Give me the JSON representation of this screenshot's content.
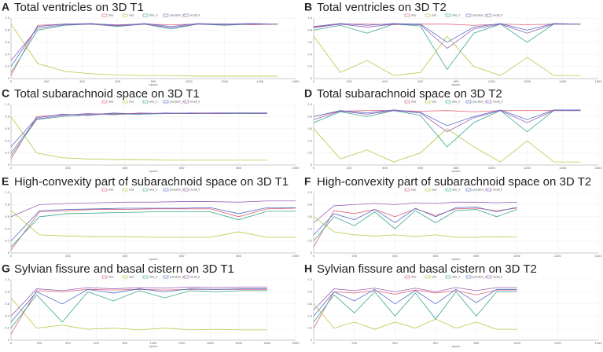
{
  "chart_data": [
    {
      "type": "line",
      "panel": "A",
      "title": "Total ventricles on 3D T1",
      "xlabel": "epoch",
      "x": [
        0,
        150,
        300,
        450,
        600,
        750,
        900,
        1050,
        1200,
        1350,
        1500
      ],
      "xlim": [
        0,
        1600
      ],
      "xticks": [
        0,
        200,
        400,
        600,
        800,
        1000,
        1200,
        1400,
        1600
      ],
      "ylim": [
        0,
        1
      ],
      "yticks": [
        0,
        0.2,
        0.4,
        0.6,
        0.8,
        {
          "value": 1,
          "label": "1.0"
        }
      ],
      "series": [
        {
          "name": "dice",
          "color": "#e06377",
          "values": [
            0.05,
            0.88,
            0.9,
            0.9,
            0.89,
            0.9,
            0.89,
            0.9,
            0.9,
            0.89,
            0.9
          ]
        },
        {
          "name": "loss",
          "color": "#b5c944",
          "values": [
            0.9,
            0.25,
            0.12,
            0.08,
            0.06,
            0.05,
            0.05,
            0.04,
            0.04,
            0.04,
            0.04
          ]
        },
        {
          "name": "dice_0",
          "color": "#3aa88f",
          "values": [
            0.1,
            0.8,
            0.88,
            0.9,
            0.86,
            0.9,
            0.82,
            0.9,
            0.88,
            0.9,
            0.9
          ]
        },
        {
          "name": "precision_0",
          "color": "#5470c6",
          "values": [
            0.2,
            0.86,
            0.9,
            0.91,
            0.88,
            0.91,
            0.86,
            0.91,
            0.9,
            0.91,
            0.9
          ]
        },
        {
          "name": "recall_0",
          "color": "#9a60b4",
          "values": [
            0.3,
            0.83,
            0.89,
            0.9,
            0.87,
            0.9,
            0.84,
            0.9,
            0.89,
            0.9,
            0.9
          ]
        }
      ]
    },
    {
      "type": "line",
      "panel": "B",
      "title": "Total ventricles on 3D T2",
      "xlabel": "epoch",
      "x": [
        0,
        150,
        300,
        450,
        600,
        750,
        900,
        1050,
        1200,
        1350,
        1500
      ],
      "xlim": [
        0,
        1600
      ],
      "xticks": [
        0,
        200,
        400,
        600,
        800,
        1000,
        1200,
        1400,
        1600
      ],
      "ylim": [
        0,
        1
      ],
      "yticks": [
        0,
        0.2,
        0.4,
        0.6,
        0.8,
        {
          "value": 1,
          "label": "1.0"
        }
      ],
      "series": [
        {
          "name": "dice",
          "color": "#e06377",
          "values": [
            0.85,
            0.9,
            0.9,
            0.89,
            0.9,
            0.9,
            0.88,
            0.9,
            0.89,
            0.9,
            0.9
          ]
        },
        {
          "name": "loss",
          "color": "#b5c944",
          "values": [
            0.7,
            0.1,
            0.3,
            0.05,
            0.1,
            0.7,
            0.2,
            0.05,
            0.35,
            0.05,
            0.05
          ]
        },
        {
          "name": "dice_0",
          "color": "#3aa88f",
          "values": [
            0.8,
            0.88,
            0.75,
            0.9,
            0.87,
            0.15,
            0.75,
            0.9,
            0.6,
            0.9,
            0.9
          ]
        },
        {
          "name": "precision_0",
          "color": "#5470c6",
          "values": [
            0.86,
            0.91,
            0.88,
            0.91,
            0.9,
            0.6,
            0.85,
            0.91,
            0.8,
            0.91,
            0.9
          ]
        },
        {
          "name": "recall_0",
          "color": "#9a60b4",
          "values": [
            0.84,
            0.9,
            0.85,
            0.9,
            0.89,
            0.5,
            0.82,
            0.9,
            0.75,
            0.9,
            0.9
          ]
        }
      ]
    },
    {
      "type": "line",
      "panel": "C",
      "title": "Total subarachnoid space on 3D T1",
      "xlabel": "epoch",
      "x": [
        0,
        90,
        180,
        270,
        360,
        450,
        540,
        630,
        720,
        810,
        900
      ],
      "xlim": [
        0,
        1000
      ],
      "xticks": [
        0,
        200,
        400,
        600,
        800,
        1000
      ],
      "ylim": [
        0,
        1
      ],
      "yticks": [
        0,
        0.2,
        0.4,
        0.6,
        0.8,
        {
          "value": 1,
          "label": "1.0"
        }
      ],
      "series": [
        {
          "name": "dice",
          "color": "#e06377",
          "values": [
            0.1,
            0.8,
            0.83,
            0.84,
            0.85,
            0.85,
            0.85,
            0.86,
            0.86,
            0.86,
            0.86
          ]
        },
        {
          "name": "loss",
          "color": "#b5c944",
          "values": [
            0.8,
            0.2,
            0.12,
            0.1,
            0.09,
            0.09,
            0.08,
            0.08,
            0.08,
            0.08,
            0.08
          ]
        },
        {
          "name": "dice_0",
          "color": "#3aa88f",
          "values": [
            0.15,
            0.75,
            0.8,
            0.83,
            0.84,
            0.84,
            0.85,
            0.85,
            0.85,
            0.85,
            0.85
          ]
        },
        {
          "name": "precision_0",
          "color": "#5470c6",
          "values": [
            0.3,
            0.78,
            0.84,
            0.82,
            0.86,
            0.84,
            0.86,
            0.85,
            0.86,
            0.86,
            0.86
          ]
        },
        {
          "name": "recall_0",
          "color": "#9a60b4",
          "values": [
            0.2,
            0.76,
            0.82,
            0.85,
            0.83,
            0.86,
            0.85,
            0.86,
            0.85,
            0.86,
            0.85
          ]
        }
      ]
    },
    {
      "type": "line",
      "panel": "D",
      "title": "Total subarachnoid space on 3D T2",
      "xlabel": "epoch",
      "x": [
        0,
        150,
        300,
        450,
        600,
        750,
        900,
        1050,
        1200,
        1350,
        1500
      ],
      "xlim": [
        0,
        1600
      ],
      "xticks": [
        0,
        200,
        400,
        600,
        800,
        1000,
        1200,
        1400,
        1600
      ],
      "ylim": [
        0,
        1
      ],
      "yticks": [
        0,
        0.2,
        0.4,
        0.6,
        0.8,
        {
          "value": 1,
          "label": "1.0"
        }
      ],
      "series": [
        {
          "name": "dice",
          "color": "#e06377",
          "values": [
            0.8,
            0.89,
            0.9,
            0.9,
            0.89,
            0.9,
            0.88,
            0.9,
            0.9,
            0.9,
            0.9
          ]
        },
        {
          "name": "loss",
          "color": "#b5c944",
          "values": [
            0.6,
            0.1,
            0.25,
            0.05,
            0.2,
            0.6,
            0.3,
            0.05,
            0.4,
            0.05,
            0.05
          ]
        },
        {
          "name": "dice_0",
          "color": "#3aa88f",
          "values": [
            0.7,
            0.88,
            0.8,
            0.9,
            0.82,
            0.3,
            0.7,
            0.9,
            0.55,
            0.9,
            0.9
          ]
        },
        {
          "name": "precision_0",
          "color": "#5470c6",
          "values": [
            0.8,
            0.9,
            0.86,
            0.91,
            0.87,
            0.65,
            0.8,
            0.91,
            0.75,
            0.91,
            0.91
          ]
        },
        {
          "name": "recall_0",
          "color": "#9a60b4",
          "values": [
            0.75,
            0.89,
            0.84,
            0.9,
            0.86,
            0.55,
            0.78,
            0.9,
            0.7,
            0.9,
            0.9
          ]
        }
      ]
    },
    {
      "type": "line",
      "panel": "E",
      "title": "High-convexity part of subarachnoid space on 3D T1",
      "xlabel": "epoch",
      "x": [
        0,
        100,
        200,
        300,
        400,
        500,
        600,
        700,
        800,
        900,
        1000
      ],
      "xlim": [
        0,
        1000
      ],
      "xticks": [
        0,
        200,
        400,
        600,
        800,
        1000
      ],
      "ylim": [
        0,
        1
      ],
      "yticks": [
        0,
        0.2,
        0.4,
        0.6,
        0.8,
        {
          "value": 1,
          "label": "1.0"
        }
      ],
      "series": [
        {
          "name": "dice",
          "color": "#e06377",
          "values": [
            0.05,
            0.68,
            0.7,
            0.72,
            0.72,
            0.73,
            0.73,
            0.73,
            0.6,
            0.73,
            0.74
          ]
        },
        {
          "name": "loss",
          "color": "#b5c944",
          "values": [
            0.7,
            0.3,
            0.28,
            0.27,
            0.27,
            0.26,
            0.26,
            0.26,
            0.35,
            0.26,
            0.26
          ]
        },
        {
          "name": "dice_0",
          "color": "#3aa88f",
          "values": [
            0.1,
            0.6,
            0.65,
            0.66,
            0.67,
            0.68,
            0.68,
            0.68,
            0.55,
            0.69,
            0.69
          ]
        },
        {
          "name": "precision_0",
          "color": "#5470c6",
          "values": [
            0.2,
            0.7,
            0.72,
            0.73,
            0.74,
            0.74,
            0.74,
            0.75,
            0.65,
            0.75,
            0.75
          ]
        },
        {
          "name": "recall_0",
          "color": "#9a60b4",
          "values": [
            0.6,
            0.8,
            0.82,
            0.83,
            0.84,
            0.84,
            0.85,
            0.85,
            0.84,
            0.86,
            0.86
          ]
        }
      ]
    },
    {
      "type": "line",
      "panel": "F",
      "title": "High-convexity part of subarachnoid space on 3D T2",
      "xlabel": "epoch",
      "x": [
        0,
        100,
        200,
        300,
        400,
        500,
        600,
        700,
        800,
        900,
        1000
      ],
      "xlim": [
        0,
        1400
      ],
      "xticks": [
        0,
        200,
        400,
        600,
        800,
        1000,
        1200,
        1400
      ],
      "ylim": [
        0,
        1
      ],
      "yticks": [
        0,
        0.2,
        0.4,
        0.6,
        0.8,
        {
          "value": 1,
          "label": "1.0"
        }
      ],
      "series": [
        {
          "name": "dice",
          "color": "#e06377",
          "values": [
            0.1,
            0.7,
            0.65,
            0.72,
            0.6,
            0.73,
            0.62,
            0.73,
            0.74,
            0.7,
            0.74
          ]
        },
        {
          "name": "loss",
          "color": "#b5c944",
          "values": [
            0.6,
            0.35,
            0.3,
            0.28,
            0.3,
            0.27,
            0.3,
            0.26,
            0.26,
            0.27,
            0.26
          ]
        },
        {
          "name": "dice_0",
          "color": "#3aa88f",
          "values": [
            0.2,
            0.6,
            0.45,
            0.68,
            0.4,
            0.7,
            0.5,
            0.7,
            0.72,
            0.6,
            0.72
          ]
        },
        {
          "name": "precision_0",
          "color": "#5470c6",
          "values": [
            0.3,
            0.65,
            0.55,
            0.72,
            0.5,
            0.74,
            0.6,
            0.75,
            0.76,
            0.68,
            0.76
          ]
        },
        {
          "name": "recall_0",
          "color": "#9a60b4",
          "values": [
            0.5,
            0.78,
            0.8,
            0.82,
            0.8,
            0.83,
            0.82,
            0.84,
            0.84,
            0.83,
            0.84
          ]
        }
      ]
    },
    {
      "type": "line",
      "panel": "G",
      "title": "Sylvian fissure and basal cistern on 3D T1",
      "xlabel": "epoch",
      "x": [
        0,
        180,
        360,
        540,
        720,
        900,
        1080,
        1260,
        1440,
        1620,
        1800
      ],
      "xlim": [
        0,
        2000
      ],
      "xticks": [
        0,
        200,
        400,
        600,
        800,
        1000,
        1200,
        1400,
        1600,
        1800,
        2000
      ],
      "ylim": [
        0,
        1
      ],
      "yticks": [
        0,
        0.2,
        0.4,
        0.6,
        0.8,
        {
          "value": 1,
          "label": "1.0"
        }
      ],
      "series": [
        {
          "name": "dice",
          "color": "#e06377",
          "values": [
            0.1,
            0.82,
            0.8,
            0.84,
            0.83,
            0.84,
            0.83,
            0.84,
            0.84,
            0.84,
            0.84
          ]
        },
        {
          "name": "loss",
          "color": "#b5c944",
          "values": [
            0.7,
            0.2,
            0.25,
            0.18,
            0.2,
            0.17,
            0.2,
            0.17,
            0.18,
            0.17,
            0.17
          ]
        },
        {
          "name": "dice_0",
          "color": "#3aa88f",
          "values": [
            0.2,
            0.75,
            0.3,
            0.8,
            0.65,
            0.82,
            0.7,
            0.82,
            0.8,
            0.82,
            0.82
          ]
        },
        {
          "name": "precision_0",
          "color": "#5470c6",
          "values": [
            0.3,
            0.8,
            0.6,
            0.84,
            0.78,
            0.85,
            0.8,
            0.85,
            0.84,
            0.85,
            0.85
          ]
        },
        {
          "name": "recall_0",
          "color": "#9a60b4",
          "values": [
            0.4,
            0.85,
            0.82,
            0.87,
            0.85,
            0.87,
            0.86,
            0.88,
            0.87,
            0.88,
            0.88
          ]
        }
      ]
    },
    {
      "type": "line",
      "panel": "H",
      "title": "Sylvian fissure and basal cistern on 3D T2",
      "xlabel": "epoch",
      "x": [
        0,
        100,
        200,
        300,
        400,
        500,
        600,
        700,
        800,
        900,
        1000
      ],
      "xlim": [
        0,
        1400
      ],
      "xticks": [
        0,
        200,
        400,
        600,
        800,
        1000,
        1200,
        1400
      ],
      "ylim": [
        0,
        1
      ],
      "yticks": [
        0,
        0.2,
        0.4,
        0.6,
        0.8,
        {
          "value": 1,
          "label": "1.0"
        }
      ],
      "series": [
        {
          "name": "dice",
          "color": "#e06377",
          "values": [
            0.2,
            0.8,
            0.78,
            0.82,
            0.76,
            0.83,
            0.78,
            0.82,
            0.75,
            0.83,
            0.83
          ]
        },
        {
          "name": "loss",
          "color": "#b5c944",
          "values": [
            0.6,
            0.2,
            0.3,
            0.18,
            0.3,
            0.2,
            0.35,
            0.2,
            0.3,
            0.18,
            0.18
          ]
        },
        {
          "name": "dice_0",
          "color": "#3aa88f",
          "values": [
            0.3,
            0.75,
            0.45,
            0.8,
            0.4,
            0.78,
            0.35,
            0.8,
            0.4,
            0.8,
            0.8
          ]
        },
        {
          "name": "precision_0",
          "color": "#5470c6",
          "values": [
            0.4,
            0.8,
            0.65,
            0.84,
            0.6,
            0.82,
            0.6,
            0.84,
            0.62,
            0.84,
            0.84
          ]
        },
        {
          "name": "recall_0",
          "color": "#9a60b4",
          "values": [
            0.5,
            0.85,
            0.82,
            0.86,
            0.8,
            0.86,
            0.8,
            0.87,
            0.82,
            0.87,
            0.87
          ]
        }
      ]
    }
  ]
}
